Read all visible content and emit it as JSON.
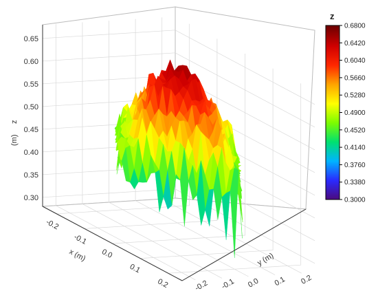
{
  "chart_data": {
    "type": "surface3d",
    "z_label": "z",
    "z_unit": "(m)",
    "x_label": "x (m)",
    "y_label": "y (m)",
    "z_ticks": [
      "0.30",
      "0.35",
      "0.40",
      "0.45",
      "0.50",
      "0.55",
      "0.60",
      "0.65"
    ],
    "x_ticks": [
      "-0.2",
      "-0.1",
      "0.0",
      "0.1",
      "0.2"
    ],
    "y_ticks": [
      "-0.2",
      "-0.1",
      "0.0",
      "0.1",
      "0.2"
    ],
    "zlim": [
      0.28,
      0.68
    ],
    "xlim": [
      -0.25,
      0.25
    ],
    "ylim": [
      -0.25,
      0.25
    ],
    "surface_description_values": {
      "peak_z": 0.66,
      "center": [
        0.0,
        0.0
      ],
      "edge_z_min": 0.31,
      "edge_z_mid": 0.45
    },
    "colorbar": {
      "title": "z",
      "min": 0.3,
      "max": 0.68,
      "ticks": [
        "0.3000",
        "0.3380",
        "0.3760",
        "0.4140",
        "0.4520",
        "0.4900",
        "0.5280",
        "0.5660",
        "0.6040",
        "0.6420",
        "0.6800"
      ]
    },
    "colormap": [
      "#4b0a7e",
      "#2a2aff",
      "#00b4ff",
      "#00e070",
      "#7cfc00",
      "#ffff00",
      "#ffa500",
      "#ff2800",
      "#d00000",
      "#6b0000"
    ],
    "grid": true
  }
}
